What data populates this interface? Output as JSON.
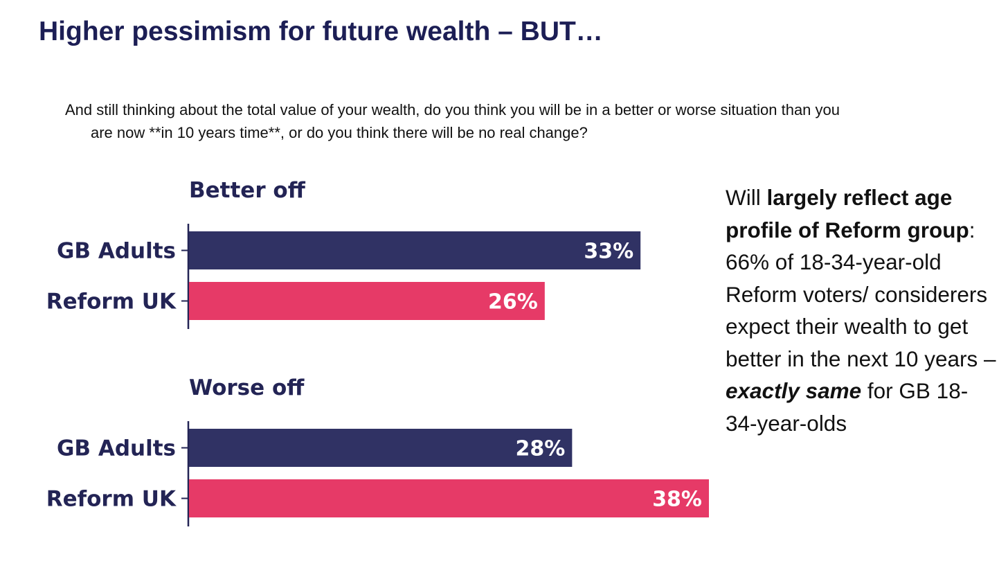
{
  "slide": {
    "title": "Higher pessimism for future wealth – BUT…",
    "question_line1": "And still thinking about the total value of your wealth, do you think you will be in a better or worse situation than you",
    "question_line2": "are now **in 10 years time**, or do you think there will be no real change?"
  },
  "note": {
    "t1": "Will ",
    "b1": "largely reflect age profile of Reform group",
    "t2": ": 66% of 18-34-year-old Reform voters/ considerers expect their wealth to get better in the next 10 years – ",
    "e1": "exactly same",
    "t3": " for GB 18-34-year-olds"
  },
  "colors": {
    "gb_adults": "#303264",
    "reform_uk": "#e63a67",
    "label_text": "#232455",
    "bar_text": "#ffffff"
  },
  "chart_data": [
    {
      "type": "bar",
      "orientation": "horizontal",
      "title": "Better off",
      "categories": [
        "GB Adults",
        "Reform UK"
      ],
      "values": [
        33,
        26
      ],
      "data_labels": [
        "33%",
        "26%"
      ],
      "xlim": [
        0,
        38
      ]
    },
    {
      "type": "bar",
      "orientation": "horizontal",
      "title": "Worse off",
      "categories": [
        "GB Adults",
        "Reform UK"
      ],
      "values": [
        28,
        38
      ],
      "data_labels": [
        "28%",
        "38%"
      ],
      "xlim": [
        0,
        38
      ]
    }
  ]
}
